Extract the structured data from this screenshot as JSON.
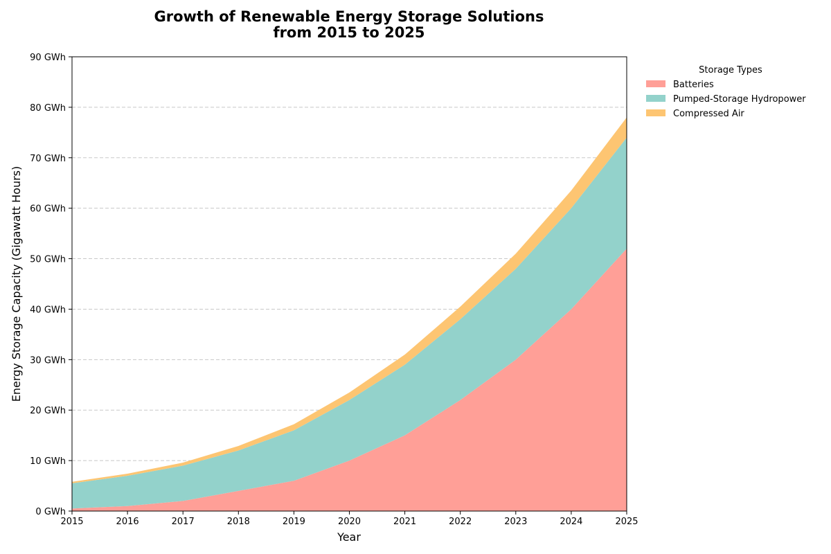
{
  "chart_data": {
    "type": "area",
    "stacked": true,
    "title_line1": "Growth of Renewable Energy Storage Solutions",
    "title_line2": "from 2015 to 2025",
    "xlabel": "Year",
    "ylabel": "Energy Storage Capacity (Gigawatt Hours)",
    "x": [
      2015,
      2016,
      2017,
      2018,
      2019,
      2020,
      2021,
      2022,
      2023,
      2024,
      2025
    ],
    "x_tick_labels": [
      "2015",
      "2016",
      "2017",
      "2018",
      "2019",
      "2020",
      "2021",
      "2022",
      "2023",
      "2024",
      "2025"
    ],
    "xlim": [
      2015,
      2025
    ],
    "ylim": [
      0,
      90
    ],
    "y_ticks": [
      0,
      10,
      20,
      30,
      40,
      50,
      60,
      70,
      80,
      90
    ],
    "y_tick_labels": [
      "0 GWh",
      "10 GWh",
      "20 GWh",
      "30 GWh",
      "40 GWh",
      "50 GWh",
      "60 GWh",
      "70 GWh",
      "80 GWh",
      "90 GWh"
    ],
    "grid": "horizontal dashed",
    "legend_title": "Storage Types",
    "legend_position": "outside right, top",
    "series": [
      {
        "name": "Batteries",
        "color": "#ff9f97",
        "values": [
          0.5,
          1,
          2,
          4,
          6,
          10,
          15,
          22,
          30,
          40,
          52
        ]
      },
      {
        "name": "Pumped-Storage Hydropower",
        "color": "#93d2cb",
        "values": [
          5,
          6,
          7,
          8,
          10,
          12,
          14,
          16,
          18,
          20,
          22
        ]
      },
      {
        "name": "Compressed Air",
        "color": "#fdc572",
        "values": [
          0.3,
          0.4,
          0.6,
          0.9,
          1.2,
          1.5,
          2,
          2.5,
          3,
          3.5,
          4
        ]
      }
    ]
  }
}
